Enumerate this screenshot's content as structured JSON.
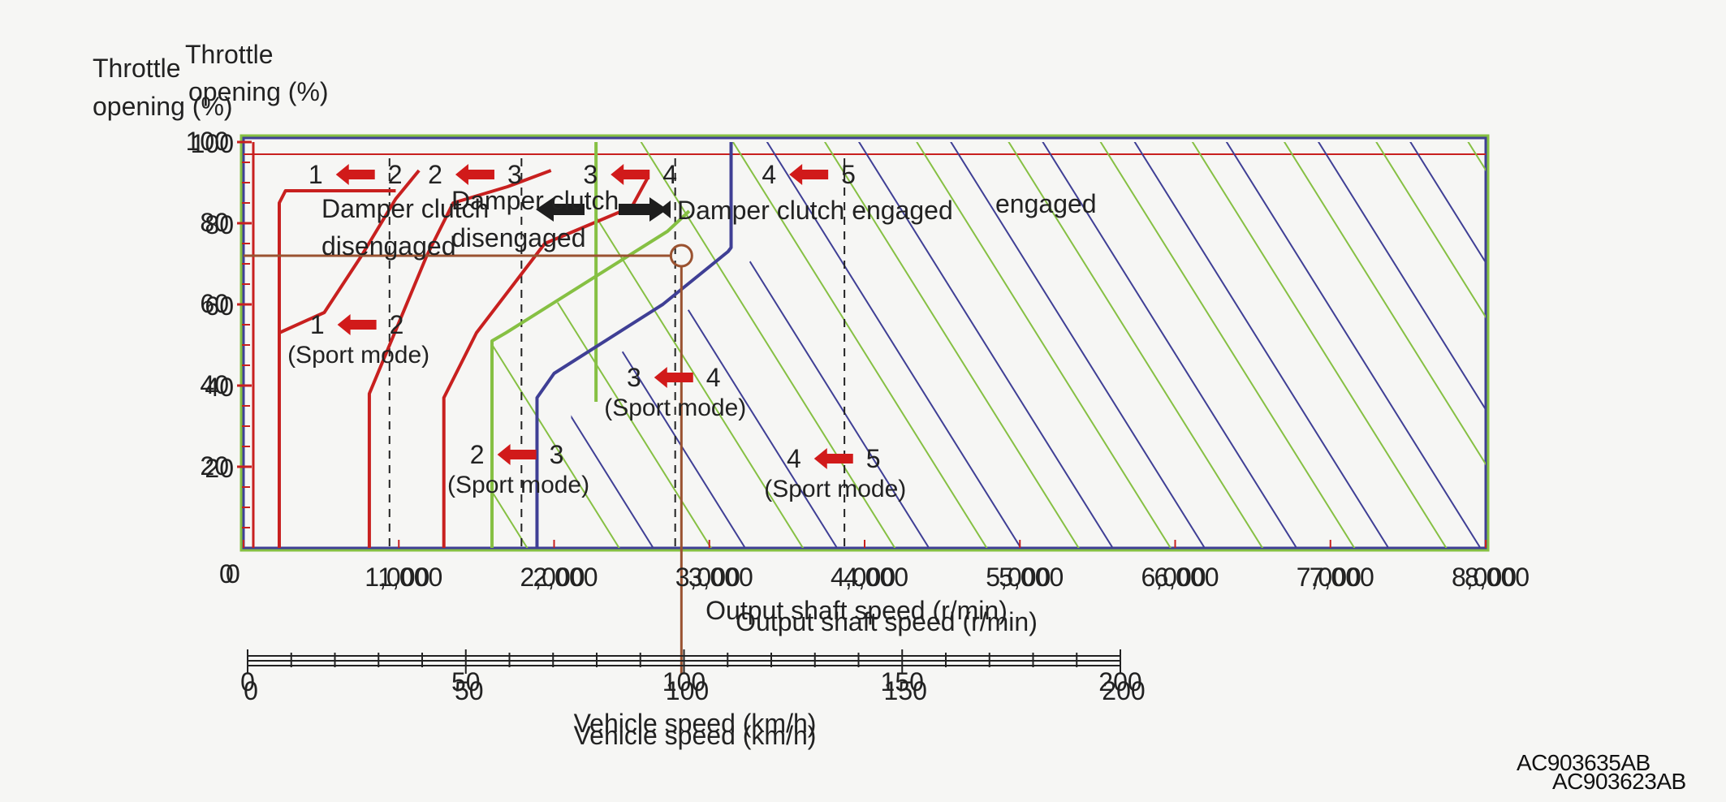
{
  "colors": {
    "red": "#c8201f",
    "blue": "#3f3f95",
    "green": "#86c043",
    "brown": "#9a5230",
    "arrow_red": "#d11a1a",
    "arrow_black": "#1e1e1e",
    "axis": "#333333",
    "dashed": "#222222",
    "background": "#f6f6f4"
  },
  "chart_data": {
    "type": "line",
    "title": "",
    "ylabel_a": "Throttle opening (%)",
    "ylabel_b": "Throttle opening (%)",
    "xlabel": "Output shaft speed (r/min)",
    "xlabel_secondary": "Vehicle speed (km/h)",
    "xlim": [
      0,
      8000
    ],
    "ylim": [
      0,
      100
    ],
    "xticks": [
      "0",
      "1,000",
      "2,000",
      "3,000",
      "4,000",
      "5,000",
      "6,000",
      "7,000",
      "8,000"
    ],
    "xtick_values": [
      0,
      1000,
      2000,
      3000,
      4000,
      5000,
      6000,
      7000,
      8000
    ],
    "yticks": [
      "20",
      "40",
      "60",
      "80",
      "100"
    ],
    "ytick_values": [
      20,
      40,
      60,
      80,
      100
    ],
    "vehicle_speed_ticks": [
      "0",
      "50",
      "100",
      "150",
      "200"
    ],
    "vehicle_speed_values": [
      0,
      50,
      100,
      150,
      200
    ],
    "vehicle_speed_to_rpm": 28.5,
    "series": [
      {
        "color": "red",
        "points": [
          [
            230,
            0
          ],
          [
            230,
            85
          ],
          [
            270,
            88
          ],
          [
            980,
            88
          ]
        ]
      },
      {
        "color": "red",
        "points": [
          [
            230,
            53
          ],
          [
            520,
            58
          ],
          [
            760,
            72
          ],
          [
            980,
            86
          ],
          [
            1130,
            93
          ]
        ]
      },
      {
        "color": "red",
        "points": [
          [
            810,
            0
          ],
          [
            810,
            38
          ],
          [
            1180,
            72
          ],
          [
            1350,
            85
          ],
          [
            1700,
            89
          ],
          [
            1980,
            93
          ]
        ]
      },
      {
        "color": "red",
        "points": [
          [
            1290,
            0
          ],
          [
            1290,
            37
          ],
          [
            1500,
            53
          ],
          [
            1940,
            75
          ],
          [
            2500,
            84
          ],
          [
            2600,
            91
          ]
        ]
      },
      {
        "color": "green",
        "points": [
          [
            1600,
            0
          ],
          [
            1600,
            51
          ],
          [
            1690,
            53
          ],
          [
            2730,
            78
          ],
          [
            2870,
            83
          ]
        ]
      },
      {
        "color": "green",
        "points": [
          [
            2270,
            36
          ],
          [
            2270,
            100
          ]
        ]
      },
      {
        "color": "blue",
        "points": [
          [
            1890,
            0
          ],
          [
            1890,
            37
          ],
          [
            2000,
            43
          ],
          [
            2700,
            60
          ],
          [
            3120,
            73
          ],
          [
            3140,
            74
          ],
          [
            3140,
            100
          ]
        ]
      }
    ],
    "hatch_region": {
      "green": {
        "points": [
          [
            1600,
            0
          ],
          [
            1600,
            51
          ],
          [
            1690,
            53
          ],
          [
            2270,
            66
          ],
          [
            2270,
            100
          ],
          [
            8000,
            100
          ],
          [
            8000,
            0
          ]
        ]
      },
      "blue": {
        "points": [
          [
            1890,
            0
          ],
          [
            1890,
            37
          ],
          [
            2000,
            43
          ],
          [
            2700,
            60
          ],
          [
            3120,
            73
          ],
          [
            3140,
            74
          ],
          [
            3140,
            100
          ],
          [
            8000,
            100
          ],
          [
            8000,
            0
          ]
        ]
      }
    },
    "dashed_lines": [
      940,
      1790,
      2780,
      3870
    ],
    "annotations": [
      {
        "from": "1",
        "to": "2",
        "x": 720,
        "y": 92
      },
      {
        "from": "2",
        "to": "3",
        "x": 1490,
        "y": 92
      },
      {
        "from": "3",
        "to": "4",
        "x": 2490,
        "y": 92
      },
      {
        "from": "4",
        "to": "5",
        "x": 3640,
        "y": 92
      },
      {
        "from": "1",
        "to": "2",
        "x": 730,
        "y": 55,
        "note": "(Sport mode)"
      },
      {
        "from": "3",
        "to": "4",
        "x": 2770,
        "y": 42,
        "note": "(Sport mode)"
      },
      {
        "from": "2",
        "to": "3",
        "x": 1760,
        "y": 23,
        "note": "(Sport mode)"
      },
      {
        "from": "4",
        "to": "5",
        "x": 3800,
        "y": 22,
        "note": "(Sport mode)"
      }
    ],
    "engaged_label": "Damper clutch engaged",
    "engaged_label_ghost": "engaged",
    "disengaged_label": [
      "Damper clutch",
      "disengaged"
    ],
    "disengaged_label_ghost": [
      "Damper clutch",
      "disengaged"
    ],
    "operating_point": {
      "x": 2820,
      "y": 72
    }
  },
  "codes": [
    "AC903635AB",
    "AC903623AB"
  ]
}
